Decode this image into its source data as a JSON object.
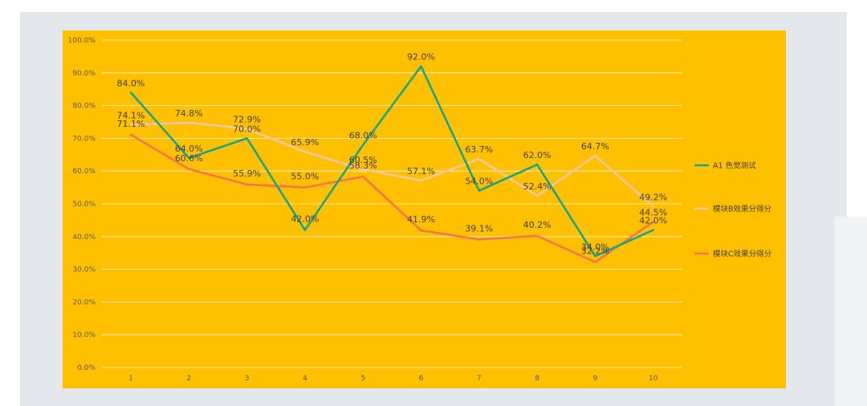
{
  "chart_data": {
    "type": "line",
    "x": [
      1,
      2,
      3,
      4,
      5,
      6,
      7,
      8,
      9,
      10
    ],
    "y_ticks": [
      "0.0%",
      "10.0%",
      "20.0%",
      "30.0%",
      "40.0%",
      "50.0%",
      "60.0%",
      "70.0%",
      "80.0%",
      "90.0%",
      "100.0%"
    ],
    "ylim": [
      0,
      100
    ],
    "grid": true,
    "legend_position": "right",
    "series": [
      {
        "name": "A1 色觉测试",
        "color": "#1aa58a",
        "values": [
          84.0,
          64.0,
          70.0,
          42.0,
          68.0,
          92.0,
          54.0,
          62.0,
          34.0,
          42.0
        ],
        "labels": [
          "84.0%",
          "64.0%",
          "70.0%",
          "42.0%",
          "68.0%",
          "92.0%",
          "54.0%",
          "62.0%",
          "34.0%",
          "42.0%"
        ]
      },
      {
        "name": "模块B效果分得分",
        "color": "#f7c8a6",
        "values": [
          74.1,
          74.8,
          72.9,
          65.9,
          60.5,
          57.1,
          63.7,
          52.4,
          64.7,
          49.2
        ],
        "labels": [
          "74.1%",
          "74.8%",
          "72.9%",
          "65.9%",
          "60.5%",
          "57.1%",
          "63.7%",
          "52.4%",
          "64.7%",
          "49.2%"
        ]
      },
      {
        "name": "模块C效果分得分",
        "color": "#f4754c",
        "values": [
          71.1,
          60.6,
          55.9,
          55.0,
          58.3,
          41.9,
          39.1,
          40.2,
          32.2,
          44.5
        ],
        "labels": [
          "71.1%",
          "60.6%",
          "55.9%",
          "55.0%",
          "58.3%",
          "41.9%",
          "39.1%",
          "40.2%",
          "32.2%",
          "44.5%"
        ]
      }
    ]
  }
}
